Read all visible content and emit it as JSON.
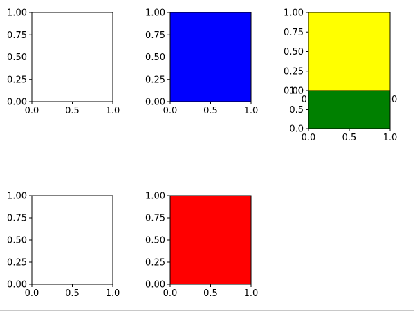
{
  "colors": {
    "blue": "#0000ff",
    "yellow": "#ffff00",
    "green": "#008000",
    "red": "#ff0000",
    "axes_edge": "#000000"
  },
  "chart_data": [
    {
      "id": "top-left",
      "type": "bar",
      "title": "",
      "xlabel": "",
      "ylabel": "",
      "xlim": [
        0,
        1
      ],
      "ylim": [
        0,
        1
      ],
      "grid": false,
      "x_ticks": [
        0,
        0.5,
        1
      ],
      "x_tick_labels": [
        "0.0",
        "0.5",
        "1.0"
      ],
      "y_ticks": [
        0,
        0.25,
        0.5,
        0.75,
        1
      ],
      "y_tick_labels": [
        "0.00",
        "0.25",
        "0.50",
        "0.75",
        "1.00"
      ],
      "fill": null
    },
    {
      "id": "top-middle",
      "type": "bar",
      "title": "",
      "xlabel": "",
      "ylabel": "",
      "xlim": [
        0,
        1
      ],
      "ylim": [
        0,
        1
      ],
      "grid": false,
      "x_ticks": [
        0,
        0.5,
        1
      ],
      "x_tick_labels": [
        "0.0",
        "0.5",
        "1.0"
      ],
      "y_ticks": [
        0,
        0.25,
        0.5,
        0.75,
        1
      ],
      "y_tick_labels": [
        "0.00",
        "0.25",
        "0.50",
        "0.75",
        "1.00"
      ],
      "fill": "blue"
    },
    {
      "id": "top-right-upper",
      "type": "bar",
      "title": "",
      "xlabel": "",
      "ylabel": "",
      "xlim": [
        0,
        1
      ],
      "ylim": [
        0,
        1
      ],
      "grid": false,
      "x_ticks": [
        0,
        0.5,
        1
      ],
      "x_tick_labels": [
        "0.0",
        "0.5",
        "1.0"
      ],
      "y_ticks": [
        0,
        0.25,
        0.5,
        0.75,
        1
      ],
      "y_tick_labels": [
        "0.00",
        "0.25",
        "0.50",
        "0.75",
        "1.00"
      ],
      "fill": "yellow"
    },
    {
      "id": "top-right-lower",
      "type": "bar",
      "title": "",
      "xlabel": "",
      "ylabel": "",
      "xlim": [
        0,
        1
      ],
      "ylim": [
        0,
        1
      ],
      "grid": false,
      "x_ticks": [
        0,
        0.5,
        1
      ],
      "x_tick_labels": [
        "0.0",
        "0.5",
        "1.0"
      ],
      "y_ticks": [
        0,
        0.5,
        1
      ],
      "y_tick_labels": [
        "0.0",
        "0.5",
        "1.0"
      ],
      "fill": "green"
    },
    {
      "id": "bottom-left",
      "type": "bar",
      "title": "",
      "xlabel": "",
      "ylabel": "",
      "xlim": [
        0,
        1
      ],
      "ylim": [
        0,
        1
      ],
      "grid": false,
      "x_ticks": [
        0,
        0.5,
        1
      ],
      "x_tick_labels": [
        "0.0",
        "0.5",
        "1.0"
      ],
      "y_ticks": [
        0,
        0.25,
        0.5,
        0.75,
        1
      ],
      "y_tick_labels": [
        "0.00",
        "0.25",
        "0.50",
        "0.75",
        "1.00"
      ],
      "fill": null
    },
    {
      "id": "bottom-middle",
      "type": "bar",
      "title": "",
      "xlabel": "",
      "ylabel": "",
      "xlim": [
        0,
        1
      ],
      "ylim": [
        0,
        1
      ],
      "grid": false,
      "x_ticks": [
        0,
        0.5,
        1
      ],
      "x_tick_labels": [
        "0.0",
        "0.5",
        "1.0"
      ],
      "y_ticks": [
        0,
        0.25,
        0.5,
        0.75,
        1
      ],
      "y_tick_labels": [
        "0.00",
        "0.25",
        "0.50",
        "0.75",
        "1.00"
      ],
      "fill": "red"
    }
  ]
}
